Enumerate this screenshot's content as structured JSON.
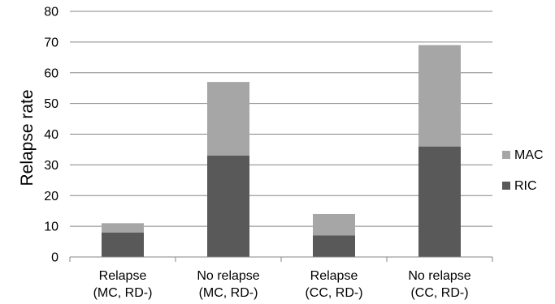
{
  "chart_data": {
    "type": "bar",
    "stacked": true,
    "categories": [
      [
        "Relapse",
        "(MC, RD-)"
      ],
      [
        "No relapse",
        "(MC, RD-)"
      ],
      [
        "Relapse",
        "(CC, RD-)"
      ],
      [
        "No relapse",
        "(CC, RD-)"
      ]
    ],
    "series": [
      {
        "name": "RIC",
        "values": [
          8,
          33,
          7,
          36
        ],
        "color": "#595959"
      },
      {
        "name": "MAC",
        "values": [
          3,
          24,
          7,
          33
        ],
        "color": "#a6a6a6"
      }
    ],
    "title": "",
    "xlabel": "",
    "ylabel": "Relapse rate",
    "ylim": [
      0,
      80
    ],
    "yticks": [
      0,
      10,
      20,
      30,
      40,
      50,
      60,
      70,
      80
    ],
    "grid": true,
    "legend_position": "right"
  }
}
